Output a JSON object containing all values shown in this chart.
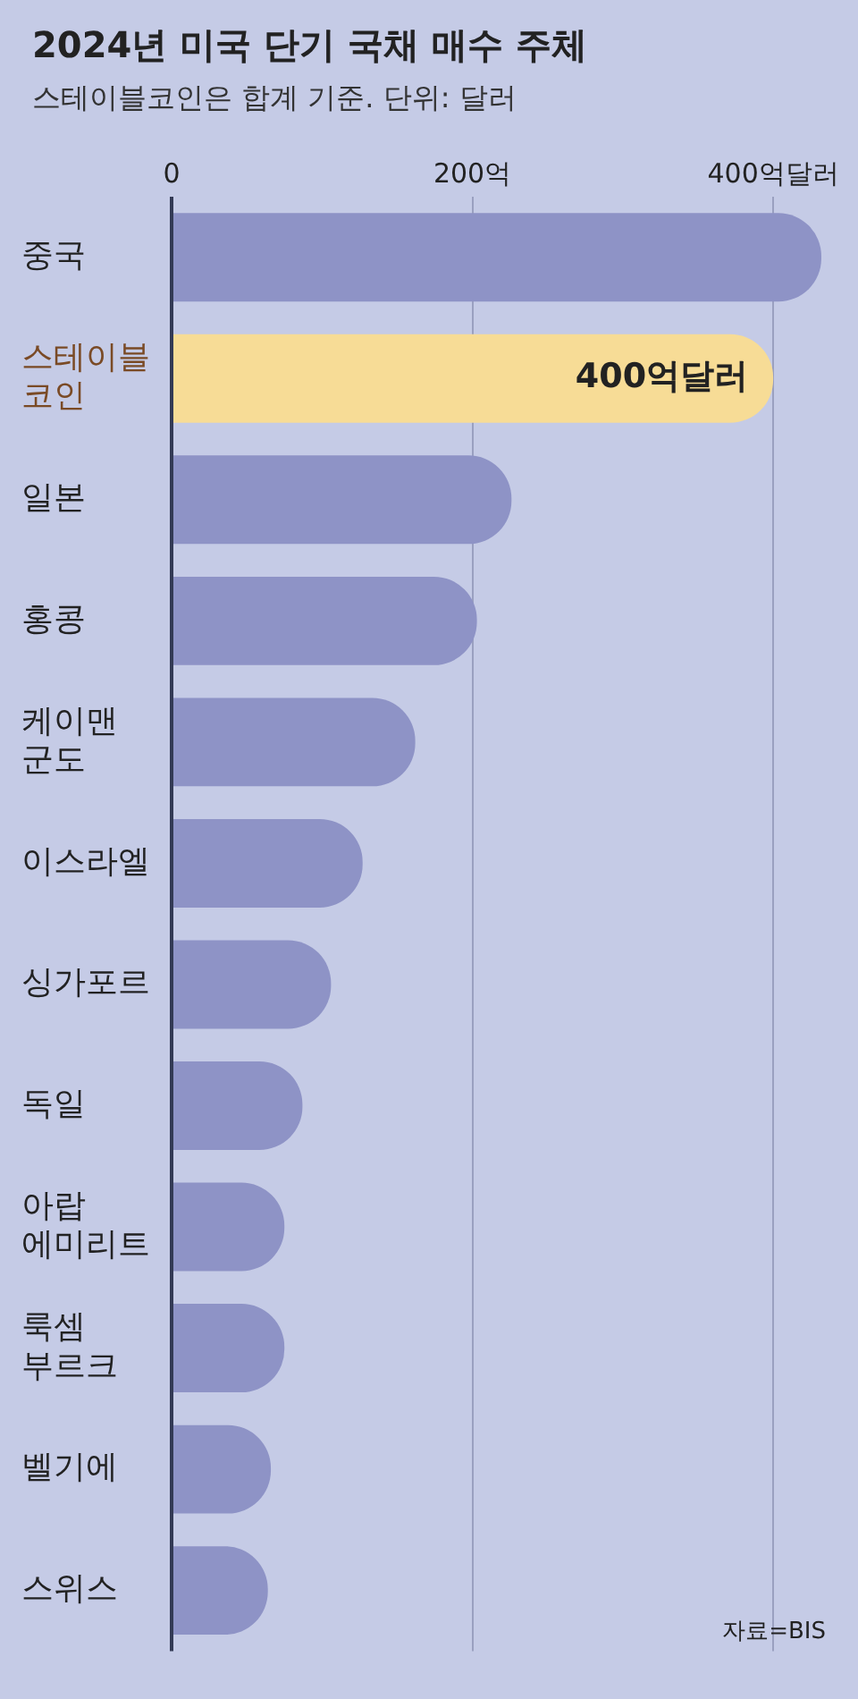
{
  "chart_data": {
    "type": "bar",
    "orientation": "horizontal",
    "title": "2024년 미국 단기 국채 매수 주체",
    "subtitle": "스테이블코인은 합계 기준. 단위: 달러",
    "categories": [
      "중국",
      "스테이블\n코인",
      "일본",
      "홍콩",
      "케이맨\n군도",
      "이스라엘",
      "싱가포르",
      "독일",
      "아랍\n에미리트",
      "룩셈\n부르크",
      "벨기에",
      "스위스"
    ],
    "values": [
      432,
      400,
      226,
      203,
      162,
      127,
      106,
      87,
      75,
      75,
      66,
      64
    ],
    "colors": [
      "#8e93c6",
      "#f7dc96",
      "#8e93c6",
      "#8e93c6",
      "#8e93c6",
      "#8e93c6",
      "#8e93c6",
      "#8e93c6",
      "#8e93c6",
      "#8e93c6",
      "#8e93c6",
      "#8e93c6"
    ],
    "value_labels": [
      null,
      "400억달러",
      null,
      null,
      null,
      null,
      null,
      null,
      null,
      null,
      null,
      null
    ],
    "xlim": [
      0,
      435
    ],
    "xticks": [
      0,
      {
        "value": 200,
        "label": "200억"
      },
      {
        "value": 400,
        "label": "400억달러"
      }
    ],
    "grid": "x",
    "legend": false,
    "annotations": [
      "자료=BIS"
    ]
  }
}
